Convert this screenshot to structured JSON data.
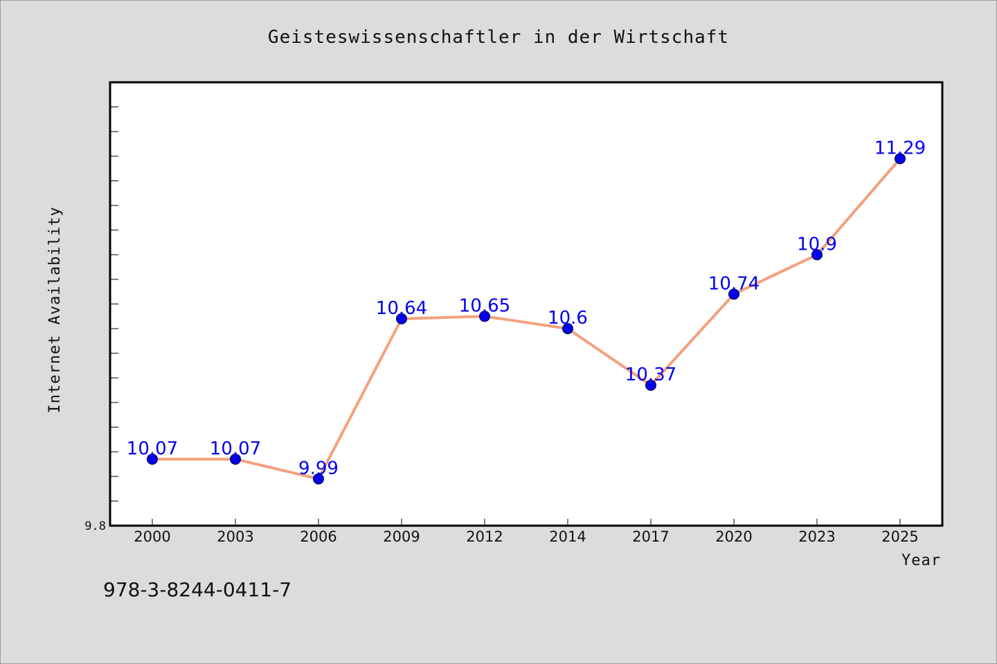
{
  "chart_data": {
    "type": "line",
    "title": "Geisteswissenschaftler in der Wirtschaft",
    "xlabel": "Year",
    "ylabel": "Internet Availability",
    "categories": [
      "2000",
      "2003",
      "2006",
      "2009",
      "2012",
      "2014",
      "2017",
      "2020",
      "2023",
      "2025"
    ],
    "series": [
      {
        "values": [
          10.07,
          10.07,
          9.99,
          10.64,
          10.65,
          10.6,
          10.37,
          10.74,
          10.9,
          11.29
        ]
      }
    ],
    "data_labels": [
      "10.07",
      "10.07",
      "9.99",
      "10.64",
      "10.65",
      "10.6",
      "10.37",
      "10.74",
      "10.9",
      "11.29"
    ],
    "ylim": [
      9.8,
      11.6
    ],
    "ytick_labels": [
      "9.8"
    ],
    "grid": false,
    "legend": "none",
    "colors": {
      "line": "#f4a07c",
      "marker": "#0000ee",
      "data_label": "#0000ee",
      "plot_background": "#ffffff",
      "page_background": "#dcdcdc"
    }
  },
  "footer": {
    "isbn": "978-3-8244-0411-7"
  }
}
